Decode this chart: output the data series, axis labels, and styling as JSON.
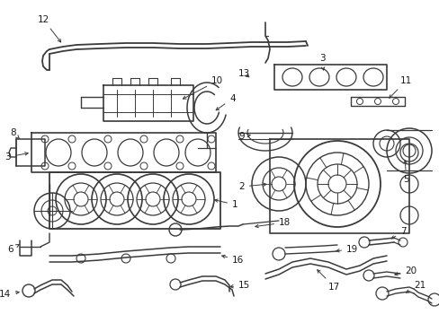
{
  "bg_color": "#ffffff",
  "line_color": "#3a3a3a",
  "text_color": "#1a1a1a",
  "fig_width": 4.89,
  "fig_height": 3.6,
  "dpi": 100,
  "label_fontsize": 7.5,
  "arrow_lw": 0.7,
  "part_lw": 1.0
}
